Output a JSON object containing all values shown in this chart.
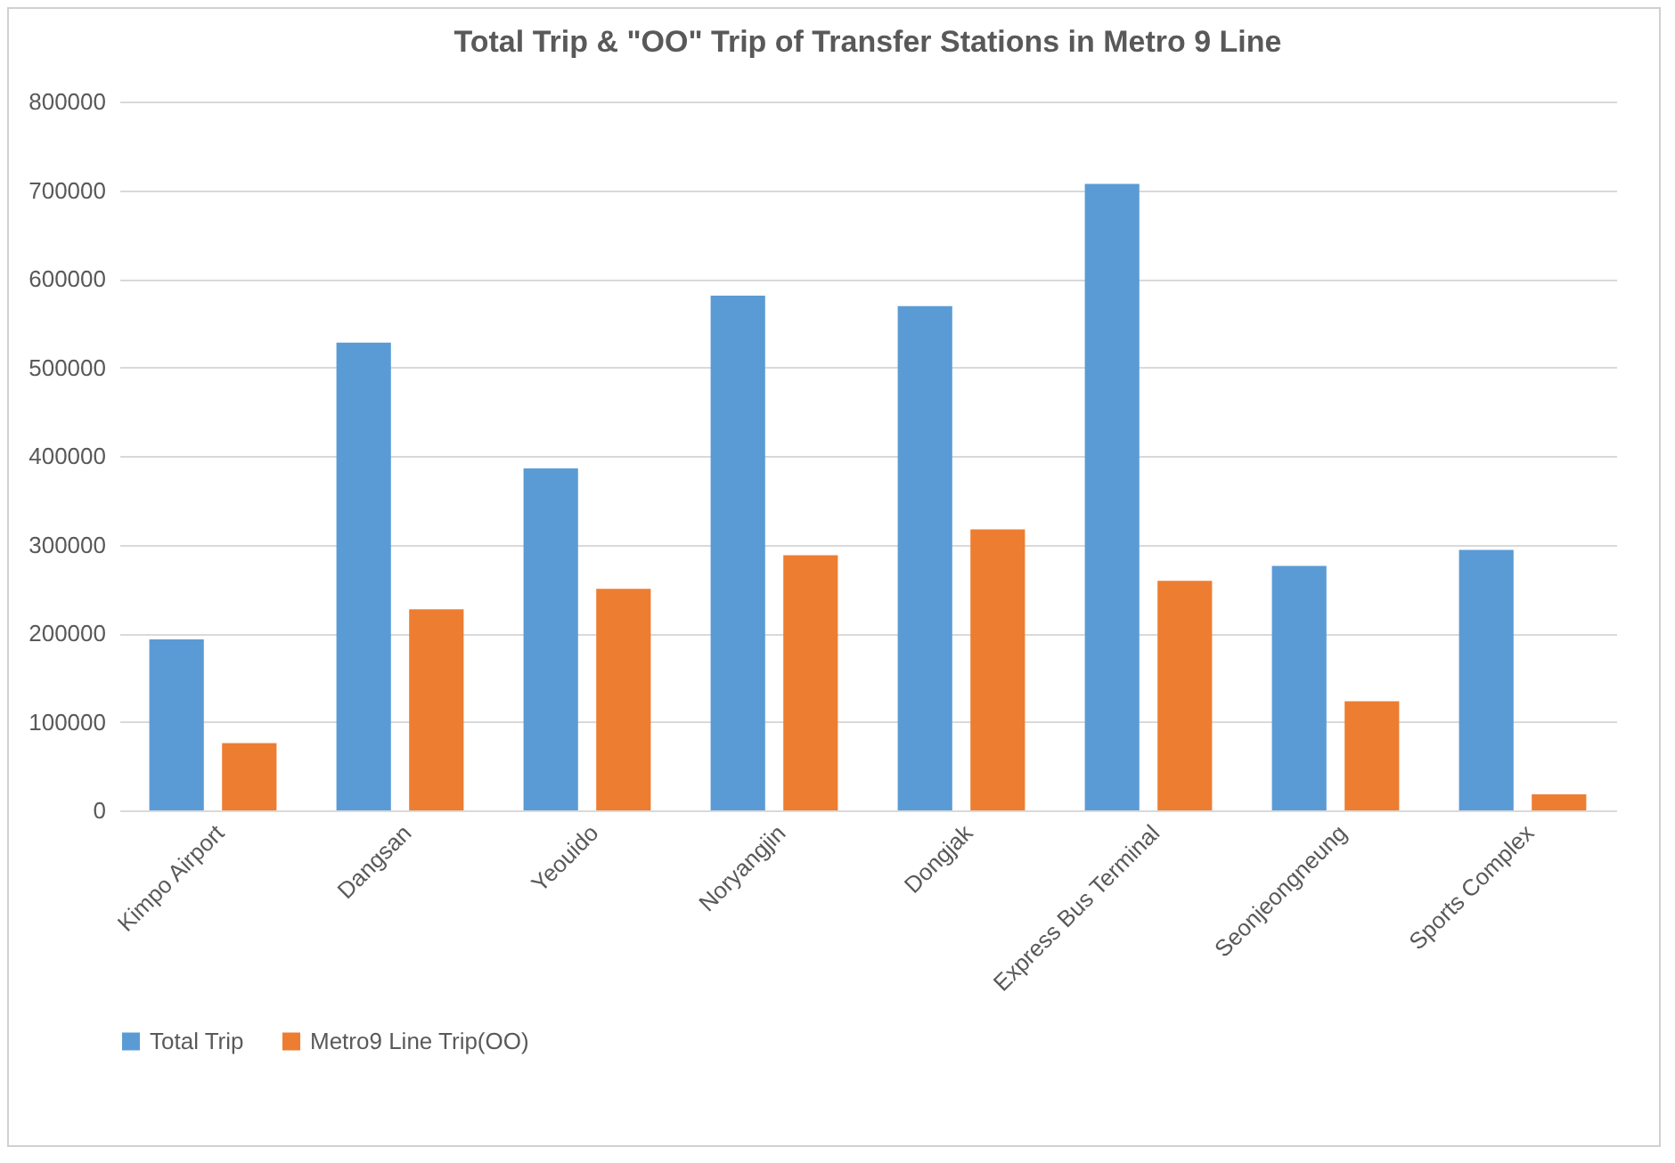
{
  "chart_data": {
    "type": "bar",
    "title": "Total Trip & \"OO\" Trip of Transfer Stations in Metro 9 Line",
    "categories": [
      "Kimpo Airport",
      "Dangsan",
      "Yeouido",
      "Noryangjin",
      "Dongjak",
      "Express Bus Terminal",
      "Seonjeongneung",
      "Sports Complex"
    ],
    "series": [
      {
        "name": "Total Trip",
        "color": "#5b9bd5",
        "values": [
          193000,
          528000,
          386000,
          581000,
          569000,
          707000,
          276000,
          294000
        ]
      },
      {
        "name": "Metro9 Line Trip(OO)",
        "color": "#ed7d31",
        "values": [
          76000,
          227000,
          250000,
          288000,
          317000,
          259000,
          123000,
          18000
        ]
      }
    ],
    "ylim": [
      0,
      800000
    ],
    "yticks": [
      0,
      100000,
      200000,
      300000,
      400000,
      500000,
      600000,
      700000,
      800000
    ],
    "grid": "y",
    "legend": "bottom"
  }
}
